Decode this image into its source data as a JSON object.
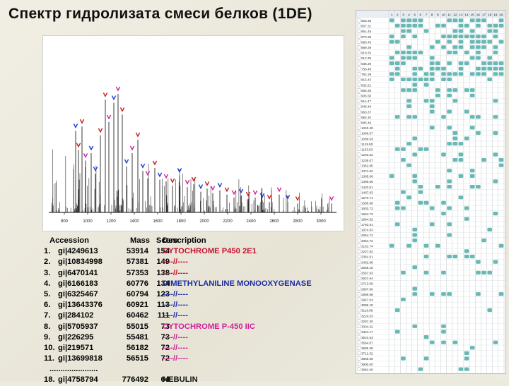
{
  "title": "Спектр гидролизата смеси белков (1DE)",
  "spectrum": {
    "x_tick_labels": [
      "800",
      "1000",
      "1200",
      "1400",
      "1600",
      "1800",
      "2000",
      "2200",
      "2400",
      "2600",
      "2800",
      "3000"
    ],
    "marker_colors": {
      "matched_1": "#c81a1a",
      "matched_2": "#1a3ad0",
      "matched_3": "#d0209a"
    }
  },
  "results": {
    "header": {
      "accession": "Accession",
      "mass": "Mass",
      "score": "Score",
      "description": "Description"
    },
    "rows": [
      {
        "rank": "1.",
        "accession": "gi|4249613",
        "mass": "53914",
        "score": "154",
        "description": "CYTOCHROME P450 2E1",
        "color": "#c8102e"
      },
      {
        "rank": "2.",
        "accession": "gi|10834998",
        "mass": "57381",
        "score": "149",
        "description": "----//----",
        "color": "#c8102e"
      },
      {
        "rank": "3.",
        "accession": "gi|6470141",
        "mass": "57353",
        "score": "138",
        "description": "----//----",
        "color": "#c8102e"
      },
      {
        "rank": "4.",
        "accession": "gi|6166183",
        "mass": "60776",
        "score": "134",
        "description": "DIMETHYLANILINE MONOOXYGENASE",
        "color": "#1a2aa0"
      },
      {
        "rank": "5.",
        "accession": "gi|6325467",
        "mass": "60794",
        "score": "123",
        "description": "----//----",
        "color": "#1a2aa0"
      },
      {
        "rank": "6.",
        "accession": "gi|13643376",
        "mass": "60921",
        "score": "113",
        "description": "----//----",
        "color": "#1a2aa0"
      },
      {
        "rank": "7.",
        "accession": "gi|284102",
        "mass": "60462",
        "score": "111",
        "description": "----//----",
        "color": "#1a2aa0"
      },
      {
        "rank": "8.",
        "accession": "gi|5705937",
        "mass": "55015",
        "score": "73",
        "description": "CYTOCHROME P-450 IIC",
        "color": "#d0209a"
      },
      {
        "rank": "9.",
        "accession": "gi|226295",
        "mass": "55481",
        "score": "73",
        "description": "----//----",
        "color": "#d0209a"
      },
      {
        "rank": "10.",
        "accession": "gi|219571",
        "mass": "56182",
        "score": "72",
        "description": "----//----",
        "color": "#d0209a"
      },
      {
        "rank": "11.",
        "accession": "gi|13699818",
        "mass": "56515",
        "score": "72",
        "description": "----//----",
        "color": "#d0209a"
      }
    ],
    "ellipsis": "......................",
    "last_row": {
      "rank": "18.",
      "accession": "gi|4758794",
      "mass": "776492",
      "score": "64",
      "description": "NEBULIN",
      "color": "#111111"
    }
  },
  "matrix": {
    "column_headers": [
      "1",
      "2",
      "3",
      "4",
      "5",
      "6",
      "7",
      "8",
      "9",
      "10",
      "11",
      "12",
      "13",
      "14",
      "15",
      "16",
      "17",
      "18",
      "19",
      "20"
    ],
    "mz_values": [
      "833.35",
      "857.31",
      "861.45",
      "873.38",
      "886.45",
      "889.39",
      "910.33",
      "912.39",
      "936.39",
      "756.48",
      "782.39",
      "815.43",
      "832.51",
      "855.39",
      "905.50",
      "914.47",
      "945.49",
      "963.37",
      "982.40",
      "985.49",
      "1049.48",
      "1096.57",
      "1099.54",
      "1129.50",
      "1153.53",
      "1203.52",
      "1236.57",
      "1362.65",
      "1374.62",
      "1385.66",
      "1396.66",
      "1420.61",
      "1487.83",
      "1570.71",
      "1586.68",
      "1603.73",
      "1654.73",
      "1694.82",
      "1792.91",
      "1874.93",
      "2054.72",
      "2064.72",
      "2161.74",
      "2227.82",
      "2381.91",
      "2452.96",
      "2568.16",
      "2567.93",
      "2621.64",
      "2713.09",
      "2807.00",
      "2886.98",
      "2947.04",
      "3089.15",
      "3119.08",
      "3224.53",
      "3267.30",
      "3334.22",
      "3424.17",
      "3510.53",
      "3564.67",
      "3685.38",
      "3712.32",
      "3868.36",
      "3900.00",
      "3981.00"
    ],
    "accent_color": "#68b8b5"
  }
}
